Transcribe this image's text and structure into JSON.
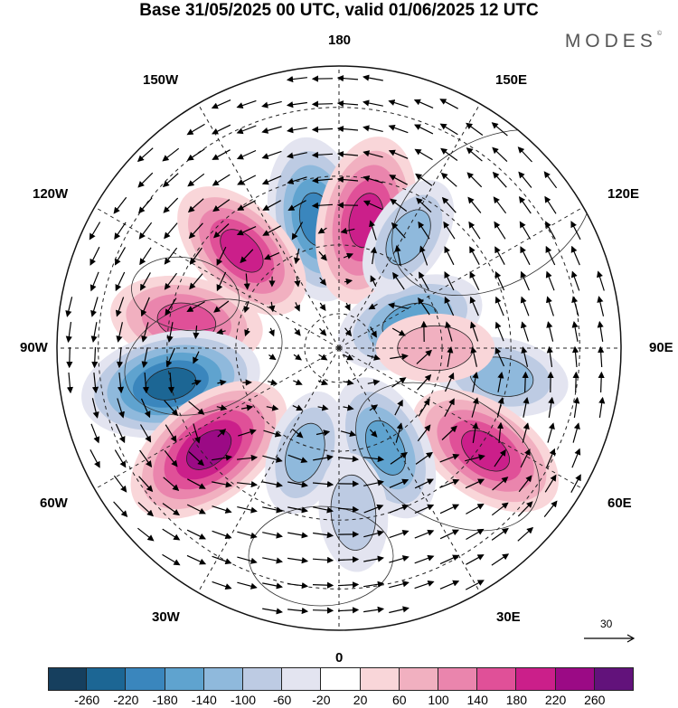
{
  "title": "Base 31/05/2025 00 UTC, valid 01/06/2025 12 UTC",
  "logo": "MODES",
  "logo_mark": "©",
  "longitude_labels": {
    "top": "180",
    "bottom": "0",
    "left": "90W",
    "right": "90E",
    "upper_left_1": "150W",
    "upper_left_2": "120W",
    "lower_left_1": "60W",
    "lower_left_2": "30W",
    "upper_right_1": "150E",
    "upper_right_2": "120E",
    "lower_right_1": "60E",
    "lower_right_2": "30E"
  },
  "vector_reference": "30",
  "colorbar": {
    "colors": [
      "#163f5e",
      "#1c6694",
      "#3a86bd",
      "#5fa3cf",
      "#8fb9dc",
      "#bdcbe3",
      "#e3e4f0",
      "#ffffff",
      "#f9d6d9",
      "#f1b0c0",
      "#ea85ad",
      "#e05098",
      "#cb1f8a",
      "#9b0a85",
      "#62127b"
    ],
    "ticks": [
      "-260",
      "-220",
      "-180",
      "-140",
      "-100",
      "-60",
      "-20",
      "20",
      "60",
      "100",
      "140",
      "180",
      "220",
      "260"
    ]
  },
  "anomaly_centers": [
    {
      "lon": -170,
      "lat": 52,
      "value": -200
    },
    {
      "lon": 168,
      "lat": 52,
      "value": 210
    },
    {
      "lon": -135,
      "lat": 50,
      "value": 180
    },
    {
      "lon": -100,
      "lat": 45,
      "value": 170
    },
    {
      "lon": -78,
      "lat": 40,
      "value": -240
    },
    {
      "lon": -52,
      "lat": 42,
      "value": 240
    },
    {
      "lon": 110,
      "lat": 68,
      "value": -160
    },
    {
      "lon": 80,
      "lat": 42,
      "value": -120
    },
    {
      "lon": 55,
      "lat": 38,
      "value": 200
    },
    {
      "lon": 25,
      "lat": 58,
      "value": -160
    },
    {
      "lon": -18,
      "lat": 58,
      "value": -100
    },
    {
      "lon": 148,
      "lat": 52,
      "value": -100
    },
    {
      "lon": 90,
      "lat": 62,
      "value": 80
    },
    {
      "lon": 5,
      "lat": 42,
      "value": -80
    }
  ]
}
